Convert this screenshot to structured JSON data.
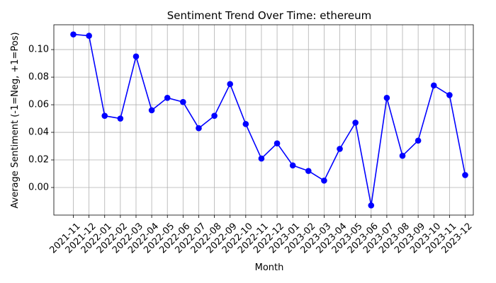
{
  "chart_data": {
    "type": "line",
    "title": "Sentiment Trend Over Time: ethereum",
    "xlabel": "Month",
    "ylabel": "Average Sentiment (-1=Neg, +1=Pos)",
    "ylim": [
      -0.02,
      0.118
    ],
    "yticks": [
      0.0,
      0.02,
      0.04,
      0.06,
      0.08,
      0.1
    ],
    "ytick_labels": [
      "0.00",
      "0.02",
      "0.04",
      "0.06",
      "0.08",
      "0.10"
    ],
    "grid": true,
    "categories": [
      "2021-11",
      "2021-12",
      "2022-01",
      "2022-02",
      "2022-03",
      "2022-04",
      "2022-05",
      "2022-06",
      "2022-07",
      "2022-08",
      "2022-09",
      "2022-10",
      "2022-11",
      "2022-12",
      "2023-01",
      "2023-02",
      "2023-03",
      "2023-04",
      "2023-05",
      "2023-06",
      "2023-07",
      "2023-08",
      "2023-09",
      "2023-10",
      "2023-11",
      "2023-12"
    ],
    "series": [
      {
        "color": "#0000ff",
        "marker": "circle",
        "values": [
          0.111,
          0.11,
          0.052,
          0.05,
          0.095,
          0.056,
          0.065,
          0.062,
          0.043,
          0.052,
          0.075,
          0.046,
          0.021,
          0.032,
          0.016,
          0.012,
          0.005,
          0.028,
          0.047,
          -0.013,
          0.065,
          0.023,
          0.034,
          0.074,
          0.067,
          0.009
        ]
      }
    ]
  }
}
